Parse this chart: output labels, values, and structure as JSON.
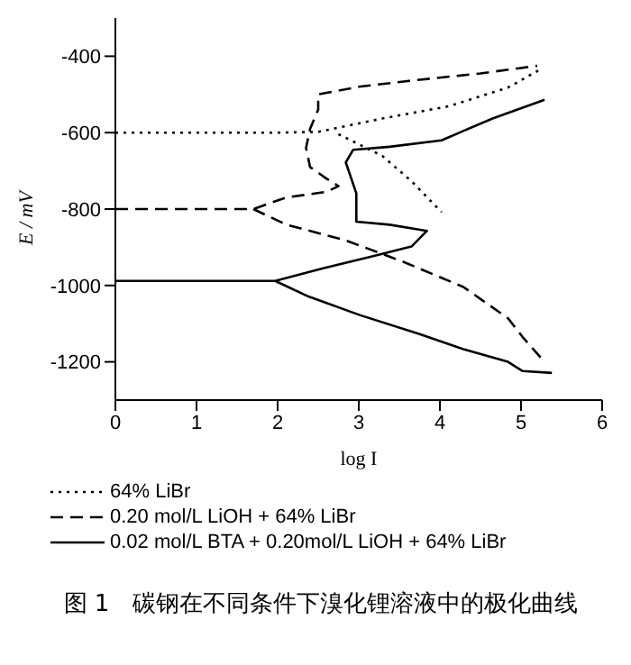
{
  "chart_data": {
    "type": "line",
    "title": "图 1　碳钢在不同条件下溴化锂溶液中的极化曲线",
    "xlabel": "log I",
    "ylabel": "E / mV",
    "xlim": [
      0,
      6
    ],
    "xticks": [
      0,
      1,
      2,
      3,
      4,
      5,
      6
    ],
    "ylim": [
      -1300,
      -300
    ],
    "yticks": [
      -400,
      -600,
      -800,
      -1000,
      -1200
    ],
    "grid": false,
    "legend": "bottom left",
    "marker": "none",
    "series": [
      {
        "name": "64% LiBr",
        "color": "#000000",
        "line_style": "dotted",
        "x": [
          0,
          2.0,
          2.5,
          3.29,
          4.11,
          4.84,
          5.25,
          null,
          2.75,
          3.29,
          3.65,
          4.02
        ],
        "values": [
          -600,
          -600,
          -598,
          -563,
          -531,
          -482,
          -433,
          null,
          -604,
          -661,
          -727,
          -808
        ]
      },
      {
        "name": "0.20 mol/L LiOH + 64% LiBr",
        "color": "#000000",
        "line_style": "dashed",
        "x": [
          0,
          1.7,
          2.1,
          2.6,
          2.75,
          2.6,
          2.4,
          2.35,
          2.4,
          2.5,
          2.5,
          3.0,
          3.6,
          4.5,
          5.2,
          null,
          1.7,
          2.11,
          2.84,
          3.56,
          4.29,
          4.84,
          5.02,
          5.29
        ],
        "values": [
          -800,
          -800,
          -770,
          -755,
          -740,
          -720,
          -690,
          -640,
          -590,
          -540,
          -500,
          -480,
          -465,
          -445,
          -425,
          null,
          -800,
          -841,
          -882,
          -939,
          -1004,
          -1086,
          -1135,
          -1200
        ]
      },
      {
        "name": "0.02 mol/L BTA + 0.20mol/L LiOH + 64% LiBr",
        "color": "#000000",
        "line_style": "solid",
        "x": [
          0,
          1.97,
          2.56,
          3.2,
          3.65,
          3.84,
          3.38,
          2.97,
          2.97,
          2.84,
          2.93,
          3.38,
          4.02,
          4.65,
          5.29,
          null,
          1.97,
          2.38,
          3.02,
          3.75,
          4.29,
          4.84,
          5.02,
          5.38
        ],
        "values": [
          -988,
          -988,
          -955,
          -922,
          -898,
          -857,
          -841,
          -833,
          -759,
          -678,
          -645,
          -637,
          -620,
          -563,
          -514,
          null,
          -988,
          -1029,
          -1078,
          -1127,
          -1167,
          -1200,
          -1224,
          -1229
        ]
      }
    ]
  }
}
